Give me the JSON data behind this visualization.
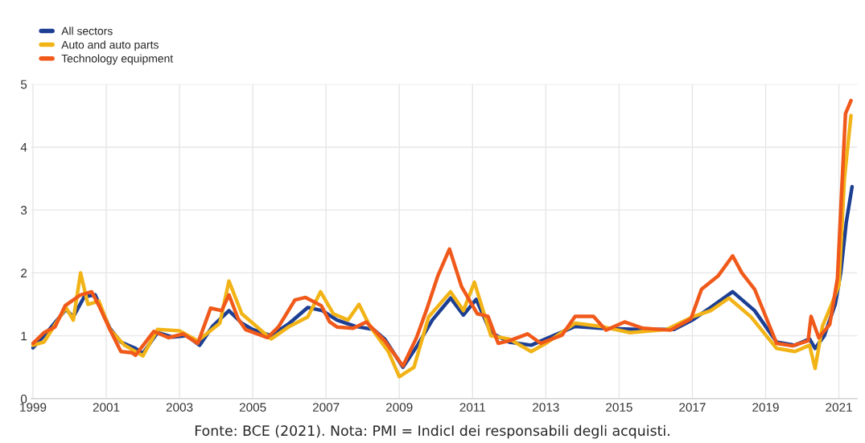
{
  "chart_data": {
    "type": "line",
    "xlim": [
      1998.95,
      2021.5
    ],
    "ylim": [
      0,
      5
    ],
    "xticks": [
      1999,
      2001,
      2003,
      2005,
      2007,
      2009,
      2011,
      2013,
      2015,
      2017,
      2019,
      2021
    ],
    "yticks": [
      0,
      1,
      2,
      3,
      4,
      5
    ],
    "grid": true,
    "legend": "top left",
    "annotations": [
      "Fonte: BCE (2021). Nota: PMI = IndicI dei responsabili degli acquisti."
    ],
    "series": [
      {
        "name": "All sectors",
        "color": "#1c3f94",
        "x": [
          1999.0,
          1999.3,
          1999.9,
          2000.1,
          2000.4,
          2000.7,
          2001.1,
          2001.4,
          2001.8,
          2002.0,
          2002.4,
          2002.8,
          2003.2,
          2003.55,
          2003.9,
          2004.35,
          2004.7,
          2005.0,
          2005.5,
          2006.0,
          2006.5,
          2006.9,
          2007.3,
          2007.8,
          2008.3,
          2008.6,
          2009.1,
          2009.5,
          2009.9,
          2010.4,
          2010.75,
          2011.1,
          2011.5,
          2012.0,
          2012.6,
          2013.2,
          2013.8,
          2014.5,
          2015.5,
          2016.5,
          2017.0,
          2017.5,
          2018.1,
          2018.7,
          2019.3,
          2019.8,
          2020.2,
          2020.35,
          2020.6,
          2020.9,
          2021.05,
          2021.2,
          2021.36
        ],
        "values": [
          0.81,
          1.0,
          1.42,
          1.3,
          1.62,
          1.65,
          1.12,
          0.9,
          0.8,
          0.72,
          1.05,
          0.98,
          1.0,
          0.85,
          1.15,
          1.4,
          1.2,
          1.1,
          1.0,
          1.2,
          1.45,
          1.4,
          1.25,
          1.15,
          1.1,
          0.95,
          0.5,
          0.85,
          1.25,
          1.6,
          1.33,
          1.58,
          1.05,
          0.9,
          0.85,
          1.0,
          1.15,
          1.12,
          1.1,
          1.1,
          1.25,
          1.45,
          1.7,
          1.4,
          0.9,
          0.85,
          0.95,
          0.8,
          1.0,
          1.5,
          2.0,
          2.8,
          3.37
        ]
      },
      {
        "name": "Auto and auto parts",
        "color": "#f2b316",
        "x": [
          1999.0,
          1999.3,
          1999.9,
          2000.1,
          2000.3,
          2000.5,
          2000.8,
          2001.1,
          2001.5,
          2002.0,
          2002.4,
          2003.0,
          2003.5,
          2004.1,
          2004.35,
          2004.7,
          2005.0,
          2005.5,
          2006.0,
          2006.5,
          2006.85,
          2007.2,
          2007.6,
          2007.9,
          2008.2,
          2008.7,
          2009.0,
          2009.4,
          2009.8,
          2010.4,
          2010.75,
          2011.05,
          2011.5,
          2012.0,
          2012.6,
          2013.0,
          2013.8,
          2014.5,
          2015.3,
          2016.3,
          2017.0,
          2017.5,
          2018.0,
          2018.6,
          2019.3,
          2019.8,
          2020.2,
          2020.35,
          2020.55,
          2020.8,
          2021.0,
          2021.15,
          2021.33
        ],
        "values": [
          0.85,
          0.9,
          1.45,
          1.25,
          2.0,
          1.5,
          1.55,
          1.1,
          0.85,
          0.68,
          1.1,
          1.08,
          0.92,
          1.2,
          1.87,
          1.35,
          1.2,
          0.95,
          1.15,
          1.3,
          1.7,
          1.35,
          1.25,
          1.5,
          1.15,
          0.75,
          0.35,
          0.5,
          1.3,
          1.7,
          1.4,
          1.85,
          1.0,
          0.95,
          0.75,
          0.88,
          1.2,
          1.15,
          1.05,
          1.1,
          1.3,
          1.4,
          1.6,
          1.3,
          0.8,
          0.75,
          0.85,
          0.48,
          1.15,
          1.5,
          1.8,
          3.5,
          4.5
        ]
      },
      {
        "name": "Technology equipment",
        "color": "#f0591a",
        "x": [
          1999.0,
          1999.3,
          1999.6,
          1999.88,
          2000.3,
          2000.6,
          2000.8,
          2001.1,
          2001.4,
          2001.7,
          2001.8,
          2002.3,
          2002.7,
          2003.1,
          2003.5,
          2003.85,
          2004.15,
          2004.35,
          2004.6,
          2004.8,
          2005.4,
          2005.7,
          2006.15,
          2006.44,
          2006.87,
          2007.1,
          2007.3,
          2007.74,
          2008.1,
          2008.6,
          2009.1,
          2009.47,
          2009.76,
          2010.05,
          2010.37,
          2010.7,
          2011.13,
          2011.42,
          2011.7,
          2012.0,
          2012.5,
          2012.86,
          2013.44,
          2013.8,
          2014.3,
          2014.64,
          2015.15,
          2015.65,
          2016.4,
          2016.96,
          2017.25,
          2017.7,
          2018.1,
          2018.35,
          2018.7,
          2019.3,
          2019.73,
          2020.16,
          2020.24,
          2020.45,
          2020.75,
          2020.96,
          2021.07,
          2021.18,
          2021.33
        ],
        "values": [
          0.88,
          1.05,
          1.14,
          1.48,
          1.65,
          1.7,
          1.48,
          1.1,
          0.75,
          0.73,
          0.69,
          1.07,
          0.97,
          1.03,
          0.88,
          1.44,
          1.4,
          1.65,
          1.27,
          1.1,
          0.97,
          1.14,
          1.57,
          1.61,
          1.48,
          1.22,
          1.14,
          1.12,
          1.22,
          0.92,
          0.52,
          0.97,
          1.44,
          1.95,
          2.38,
          1.78,
          1.35,
          1.31,
          0.88,
          0.92,
          1.03,
          0.88,
          1.01,
          1.31,
          1.31,
          1.09,
          1.22,
          1.12,
          1.09,
          1.27,
          1.74,
          1.95,
          2.27,
          2.0,
          1.74,
          0.88,
          0.84,
          0.92,
          1.31,
          0.97,
          1.18,
          1.91,
          3.24,
          4.53,
          4.74
        ]
      }
    ]
  }
}
